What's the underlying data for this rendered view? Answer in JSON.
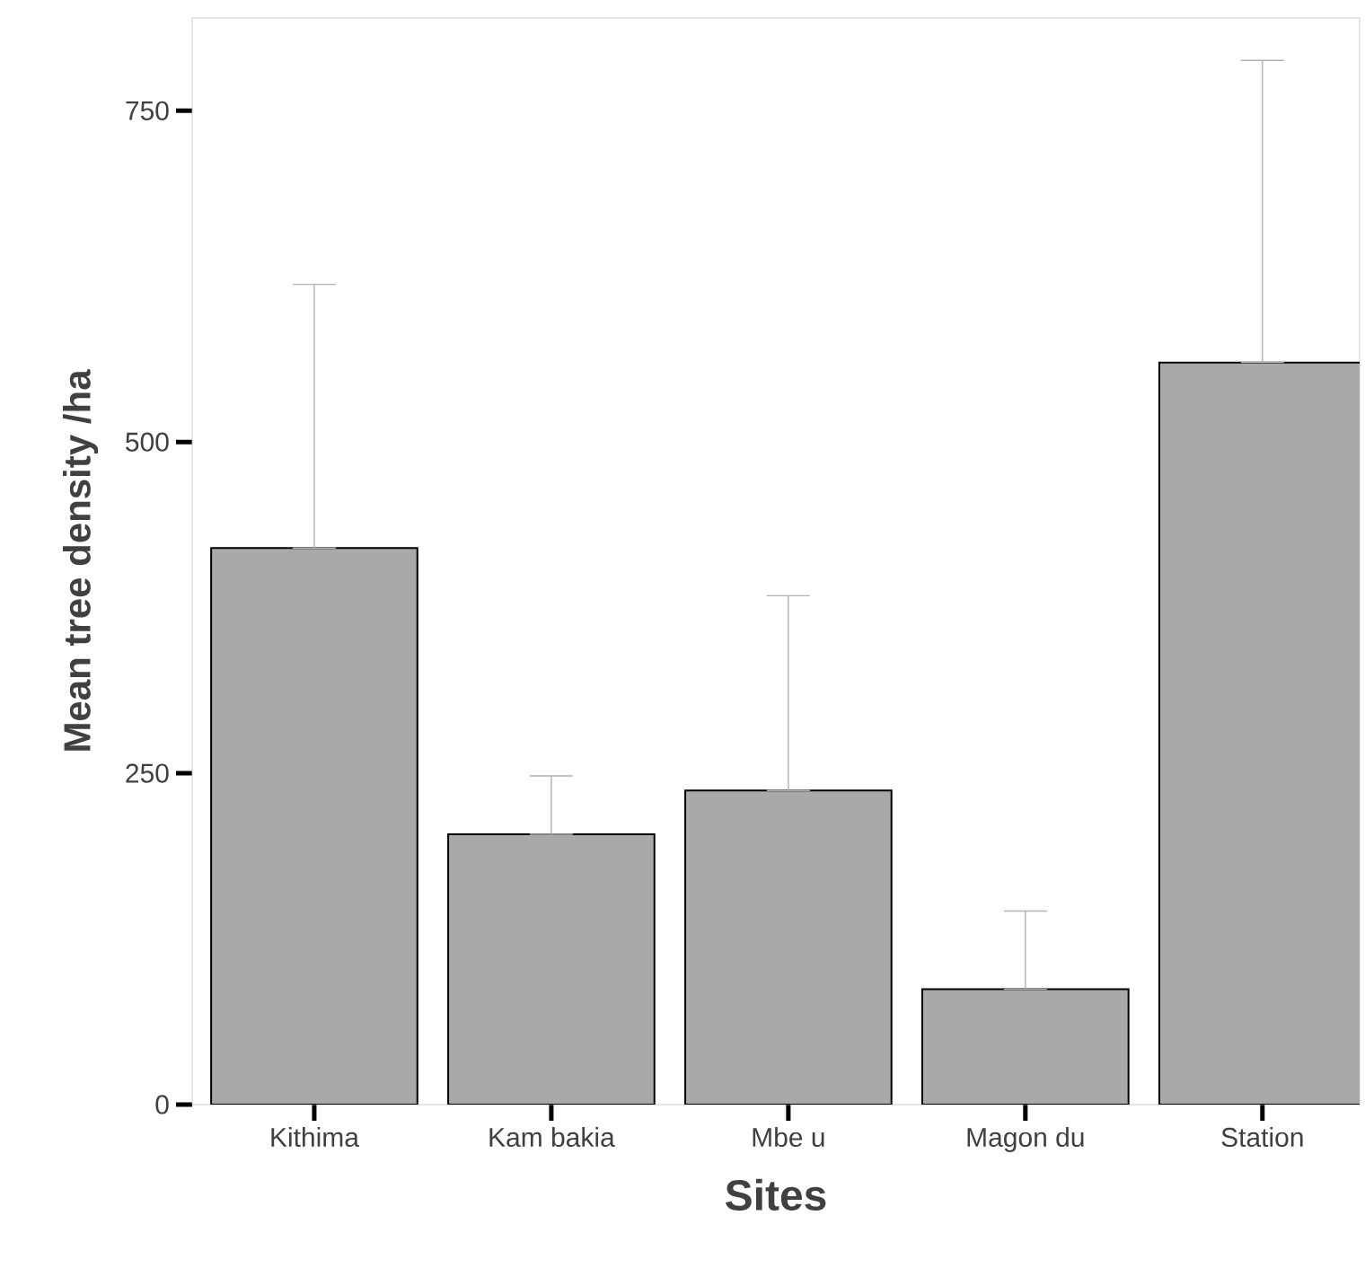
{
  "chart_data": {
    "type": "bar",
    "xlabel": "Sites",
    "ylabel": "Mean tree density /ha",
    "categories": [
      "Kithima",
      "Kam bakia",
      "Mbe u",
      "Magon du",
      "Station"
    ],
    "values": [
      420,
      204,
      237,
      87,
      560
    ],
    "errors": [
      [
        420,
        619
      ],
      [
        204,
        248
      ],
      [
        237,
        384
      ],
      [
        87,
        146
      ],
      [
        560,
        788
      ]
    ],
    "color": "#a9a9a9",
    "ylim": [
      0,
      820
    ],
    "yticks": [
      0,
      250,
      500,
      750
    ]
  }
}
